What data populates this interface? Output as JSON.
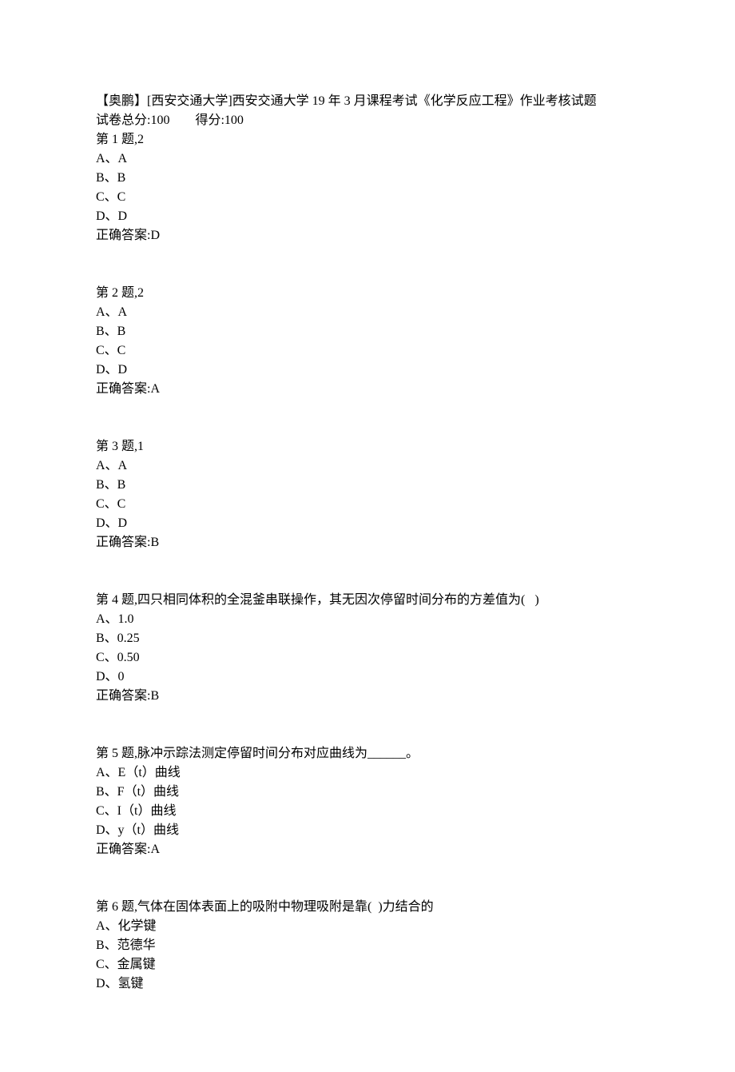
{
  "header": {
    "title": "【奥鹏】[西安交通大学]西安交通大学 19 年 3 月课程考试《化学反应工程》作业考核试题",
    "totalLabel": "试卷总分:",
    "totalValue": "100",
    "scoreLabel": "得分:",
    "scoreValue": "100"
  },
  "questions": [
    {
      "title": "第 1 题,2",
      "options": [
        "A、A",
        "B、B",
        "C、C",
        "D、D"
      ],
      "answer": "正确答案:D"
    },
    {
      "title": "第 2 题,2",
      "options": [
        "A、A",
        "B、B",
        "C、C",
        "D、D"
      ],
      "answer": "正确答案:A"
    },
    {
      "title": "第 3 题,1",
      "options": [
        "A、A",
        "B、B",
        "C、C",
        "D、D"
      ],
      "answer": "正确答案:B"
    },
    {
      "title": "第 4 题,四只相同体积的全混釜串联操作，其无因次停留时间分布的方差值为(   )",
      "options": [
        "A、1.0",
        "B、0.25",
        "C、0.50",
        "D、0"
      ],
      "answer": "正确答案:B"
    },
    {
      "title": "第 5 题,脉冲示踪法测定停留时间分布对应曲线为______。",
      "options": [
        "A、E（t）曲线",
        "B、F（t）曲线",
        "C、I（t）曲线",
        "D、y（t）曲线"
      ],
      "answer": "正确答案:A"
    },
    {
      "title": "第 6 题,气体在固体表面上的吸附中物理吸附是靠(  )力结合的",
      "options": [
        "A、化学键",
        "B、范德华",
        "C、金属键",
        "D、氢键"
      ],
      "answer": ""
    }
  ]
}
